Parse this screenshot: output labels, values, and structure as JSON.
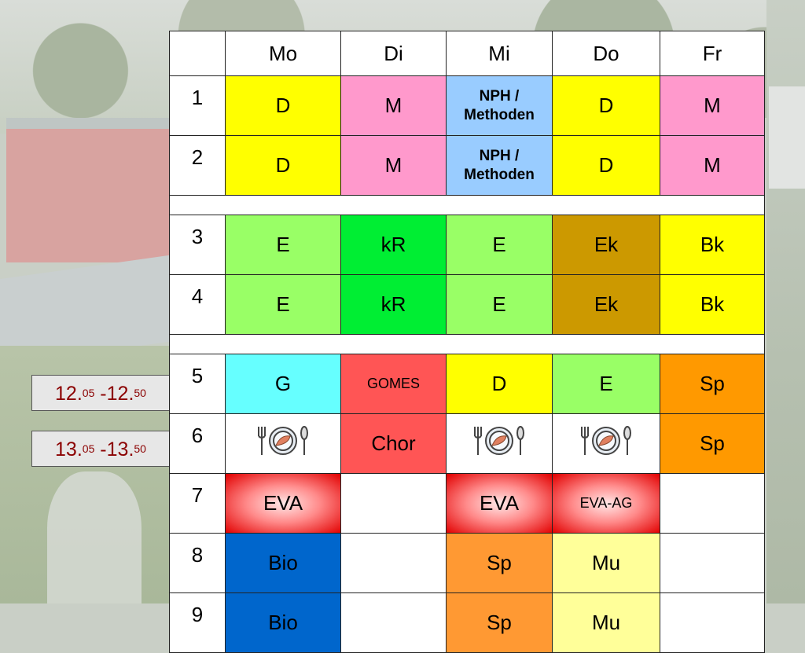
{
  "colors": {
    "yellow": "#ffff00",
    "pink": "#ff99cc",
    "lightblue": "#99ccff",
    "lightgreen": "#99ff66",
    "green": "#00ee33",
    "brown": "#cc9900",
    "cyan": "#66ffff",
    "salmon": "#ff5555",
    "orange": "#ff9900",
    "blue": "#0066cc",
    "lightorange": "#ff9933",
    "paleyellow": "#ffff99",
    "white": "#ffffff",
    "time_text": "#8b0000"
  },
  "times": [
    {
      "start_main": "12.",
      "start_sup": "05",
      "end_main": " -12.",
      "end_sup": "50"
    },
    {
      "start_main": "13.",
      "start_sup": "05",
      "end_main": " -13.",
      "end_sup": "50"
    }
  ],
  "days": [
    "Mo",
    "Di",
    "Mi",
    "Do",
    "Fr"
  ],
  "periods": [
    {
      "num": "1",
      "cells": [
        {
          "text": "D",
          "color": "yellow"
        },
        {
          "text": "M",
          "color": "pink"
        },
        {
          "text": "NPH /\nMethoden",
          "color": "lightblue",
          "style": "tiny"
        },
        {
          "text": "D",
          "color": "yellow"
        },
        {
          "text": "M",
          "color": "pink"
        }
      ]
    },
    {
      "num": "2",
      "cells": [
        {
          "text": "D",
          "color": "yellow"
        },
        {
          "text": "M",
          "color": "pink"
        },
        {
          "text": "NPH /\nMethoden",
          "color": "lightblue",
          "style": "tiny"
        },
        {
          "text": "D",
          "color": "yellow"
        },
        {
          "text": "M",
          "color": "pink"
        }
      ]
    },
    {
      "gap": true
    },
    {
      "num": "3",
      "cells": [
        {
          "text": "E",
          "color": "lightgreen"
        },
        {
          "text": "kR",
          "color": "green"
        },
        {
          "text": "E",
          "color": "lightgreen"
        },
        {
          "text": "Ek",
          "color": "brown"
        },
        {
          "text": "Bk",
          "color": "yellow"
        }
      ]
    },
    {
      "num": "4",
      "cells": [
        {
          "text": "E",
          "color": "lightgreen"
        },
        {
          "text": "kR",
          "color": "green"
        },
        {
          "text": "E",
          "color": "lightgreen"
        },
        {
          "text": "Ek",
          "color": "brown"
        },
        {
          "text": "Bk",
          "color": "yellow"
        }
      ]
    },
    {
      "gap": true
    },
    {
      "num": "5",
      "cells": [
        {
          "text": "G",
          "color": "cyan"
        },
        {
          "text": "GOMES",
          "color": "salmon",
          "style": "small"
        },
        {
          "text": "D",
          "color": "yellow"
        },
        {
          "text": "E",
          "color": "lightgreen"
        },
        {
          "text": "Sp",
          "color": "orange"
        }
      ]
    },
    {
      "num": "6",
      "cells": [
        {
          "icon": "lunch-plate-icon",
          "color": "white"
        },
        {
          "text": "Chor",
          "color": "salmon"
        },
        {
          "icon": "lunch-plate-icon",
          "color": "white"
        },
        {
          "icon": "lunch-plate-icon",
          "color": "white"
        },
        {
          "text": "Sp",
          "color": "orange"
        }
      ]
    },
    {
      "num": "7",
      "cells": [
        {
          "text": "EVA",
          "color": "eva"
        },
        {
          "text": "",
          "color": "white"
        },
        {
          "text": "EVA",
          "color": "eva"
        },
        {
          "text": "EVA-AG",
          "color": "eva",
          "style": "small"
        },
        {
          "text": "",
          "color": "white"
        }
      ]
    },
    {
      "num": "8",
      "cells": [
        {
          "text": "Bio",
          "color": "blue"
        },
        {
          "text": "",
          "color": "white"
        },
        {
          "text": "Sp",
          "color": "lightorange"
        },
        {
          "text": "Mu",
          "color": "paleyellow"
        },
        {
          "text": "",
          "color": "white"
        }
      ]
    },
    {
      "num": "9",
      "cells": [
        {
          "text": "Bio",
          "color": "blue"
        },
        {
          "text": "",
          "color": "white"
        },
        {
          "text": "Sp",
          "color": "lightorange"
        },
        {
          "text": "Mu",
          "color": "paleyellow"
        },
        {
          "text": "",
          "color": "white"
        }
      ]
    }
  ]
}
